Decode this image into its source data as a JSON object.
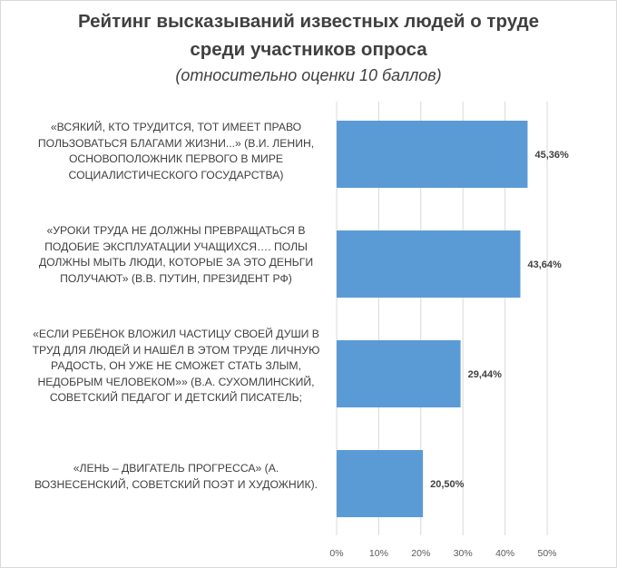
{
  "chart_data": {
    "type": "bar",
    "orientation": "horizontal",
    "title": "Рейтинг высказываний известных людей о труде среди участников опроса",
    "title_lines": [
      "Рейтинг высказываний известных людей о труде",
      "среди участников опроса"
    ],
    "subtitle": "(относительно оценки 10 баллов)",
    "categories": [
      "«Всякий, кто трудится, тот имеет право пользоваться благами жизни...» (В.И. Ленин, основоположник первого в мире социалистического государства)",
      "«Уроки труда не должны превращаться в подобие эксплуатации учащихся…. Полы должны мыть люди, которые за это деньги получают» (В.В. Путин, президент РФ)",
      "«Если ребёнок вложил частицу своей души в труд для людей и нашёл в этом труде личную радость, он уже не сможет стать злым, недобрым человеком»» (В.А. Сухомлинский, советский педагог и детский писатель;",
      "«Лень – двигатель прогресса» (А. Вознесенский, советский поэт и художник)."
    ],
    "values": [
      45.36,
      43.64,
      29.44,
      20.5
    ],
    "data_labels": [
      "45,36%",
      "43,64%",
      "29,44%",
      "20,50%"
    ],
    "xlim": [
      0,
      50
    ],
    "ticks": [
      "0%",
      "10%",
      "20%",
      "30%",
      "40%",
      "50%"
    ],
    "grid": true,
    "bar_color": "#5b9bd5"
  }
}
